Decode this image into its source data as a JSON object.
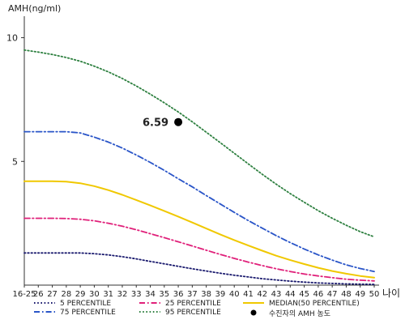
{
  "chart_data": {
    "type": "line",
    "ylabel": "AMH(ng/ml)",
    "xlabel": "나이",
    "x": [
      "16-25",
      "26",
      "27",
      "28",
      "29",
      "30",
      "31",
      "32",
      "33",
      "34",
      "35",
      "36",
      "37",
      "38",
      "39",
      "40",
      "41",
      "42",
      "43",
      "44",
      "45",
      "46",
      "47",
      "48",
      "49",
      "50"
    ],
    "yticks": [
      "10",
      "5"
    ],
    "ylim": [
      0,
      11
    ],
    "grid": false,
    "series": [
      {
        "name": "5 PERCENTILE",
        "color": "#1a1a6e",
        "style": "dotted",
        "values": [
          1.3,
          1.3,
          1.3,
          1.3,
          1.3,
          1.27,
          1.22,
          1.15,
          1.06,
          0.96,
          0.86,
          0.76,
          0.66,
          0.57,
          0.48,
          0.4,
          0.33,
          0.26,
          0.21,
          0.16,
          0.12,
          0.09,
          0.07,
          0.05,
          0.04,
          0.03
        ]
      },
      {
        "name": "25 PERCENTILE",
        "color": "#e0207a",
        "style": "dashdot",
        "values": [
          2.7,
          2.7,
          2.7,
          2.69,
          2.66,
          2.6,
          2.5,
          2.38,
          2.24,
          2.08,
          1.92,
          1.75,
          1.58,
          1.41,
          1.24,
          1.08,
          0.93,
          0.79,
          0.66,
          0.55,
          0.45,
          0.37,
          0.3,
          0.24,
          0.2,
          0.17
        ]
      },
      {
        "name": "MEDIAN(50 PERCENTILE)",
        "color": "#f0c800",
        "style": "solid",
        "values": [
          4.2,
          4.2,
          4.2,
          4.18,
          4.12,
          4.0,
          3.84,
          3.65,
          3.44,
          3.22,
          3.0,
          2.77,
          2.53,
          2.29,
          2.05,
          1.82,
          1.6,
          1.39,
          1.19,
          1.01,
          0.85,
          0.7,
          0.57,
          0.46,
          0.37,
          0.3
        ]
      },
      {
        "name": "75 PERCENTILE",
        "color": "#2a55c8",
        "style": "dashdot",
        "values": [
          6.2,
          6.2,
          6.2,
          6.2,
          6.15,
          5.98,
          5.78,
          5.54,
          5.26,
          4.96,
          4.64,
          4.3,
          3.97,
          3.62,
          3.28,
          2.94,
          2.61,
          2.3,
          2.0,
          1.72,
          1.46,
          1.22,
          1.01,
          0.82,
          0.67,
          0.55
        ]
      },
      {
        "name": "95 PERCENTILE",
        "color": "#2e8040",
        "style": "dotted",
        "values": [
          9.5,
          9.42,
          9.32,
          9.2,
          9.05,
          8.85,
          8.62,
          8.35,
          8.05,
          7.72,
          7.37,
          7.0,
          6.6,
          6.18,
          5.76,
          5.33,
          4.9,
          4.48,
          4.08,
          3.7,
          3.35,
          3.01,
          2.7,
          2.42,
          2.16,
          1.95
        ]
      }
    ],
    "patient": {
      "name": "수진자의 AMH 농도",
      "x": "36",
      "value": 6.59,
      "label": "6.59",
      "color": "#000000"
    },
    "legend_position": "bottom"
  }
}
